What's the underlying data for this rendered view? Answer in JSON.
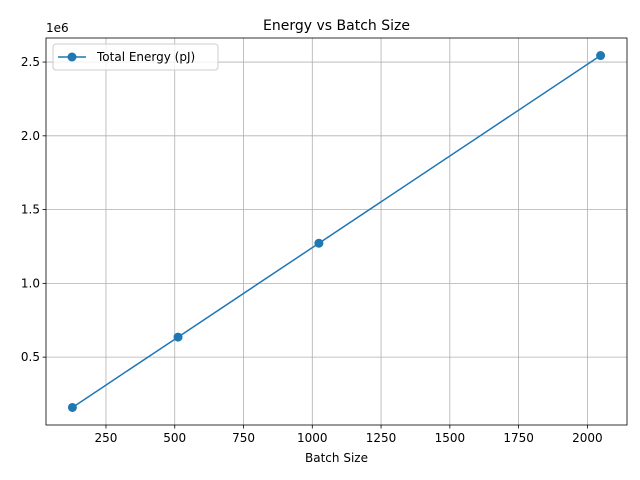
{
  "chart_data": {
    "type": "line",
    "title": "Energy vs Batch Size",
    "xlabel": "Batch Size",
    "ylabel": "",
    "y_offset_label": "1e6",
    "x": [
      128,
      512,
      1024,
      2048
    ],
    "series": [
      {
        "name": "Total Energy (pJ)",
        "color": "#1f77b4",
        "marker": "circle",
        "values": [
          159000,
          636000,
          1272000,
          2544000
        ]
      }
    ],
    "xlim": [
      32,
      2144
    ],
    "ylim": [
      40000,
      2663000
    ],
    "xticks": [
      {
        "value": 250,
        "label": "250"
      },
      {
        "value": 500,
        "label": "500"
      },
      {
        "value": 750,
        "label": "750"
      },
      {
        "value": 1000,
        "label": "1000"
      },
      {
        "value": 1250,
        "label": "1250"
      },
      {
        "value": 1500,
        "label": "1500"
      },
      {
        "value": 1750,
        "label": "1750"
      },
      {
        "value": 2000,
        "label": "2000"
      }
    ],
    "yticks": [
      {
        "value": 500000,
        "label": "0.5"
      },
      {
        "value": 1000000,
        "label": "1.0"
      },
      {
        "value": 1500000,
        "label": "1.5"
      },
      {
        "value": 2000000,
        "label": "2.0"
      },
      {
        "value": 2500000,
        "label": "2.5"
      }
    ],
    "grid": true,
    "legend_position": "upper-left"
  }
}
